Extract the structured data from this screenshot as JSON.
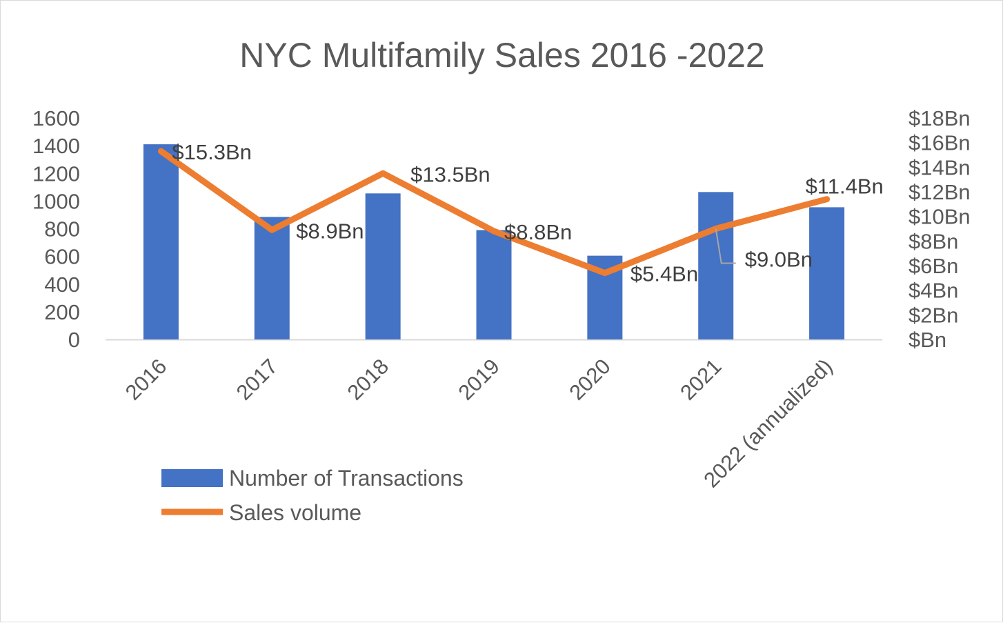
{
  "chart_data": {
    "type": "bar",
    "title": "NYC Multifamily Sales 2016 -2022",
    "categories": [
      "2016",
      "2017",
      "2018",
      "2019",
      "2020",
      "2021",
      "2022 (annualized)"
    ],
    "series": [
      {
        "name": "Number of Transactions",
        "type": "bar",
        "axis": "left",
        "color": "#4472c4",
        "values": [
          1410,
          885,
          1055,
          790,
          605,
          1065,
          955
        ]
      },
      {
        "name": "Sales volume",
        "type": "line",
        "axis": "right",
        "color": "#ed7d31",
        "values": [
          15.3,
          8.9,
          13.5,
          8.8,
          5.4,
          9.0,
          11.4
        ],
        "data_labels": [
          "$15.3Bn",
          "$8.9Bn",
          "$13.5Bn",
          "$8.8Bn",
          "$5.4Bn",
          "$9.0Bn",
          "$11.4Bn"
        ]
      }
    ],
    "y_left": {
      "range": [
        0,
        1600
      ],
      "ticks": [
        "0",
        "200",
        "400",
        "600",
        "800",
        "1000",
        "1200",
        "1400",
        "1600"
      ]
    },
    "y_right": {
      "range": [
        0,
        18
      ],
      "ticks": [
        "$Bn",
        "$2Bn",
        "$4Bn",
        "$6Bn",
        "$8Bn",
        "$10Bn",
        "$12Bn",
        "$14Bn",
        "$16Bn",
        "$18Bn"
      ]
    },
    "grid": false,
    "legend_position": "bottom-left"
  }
}
